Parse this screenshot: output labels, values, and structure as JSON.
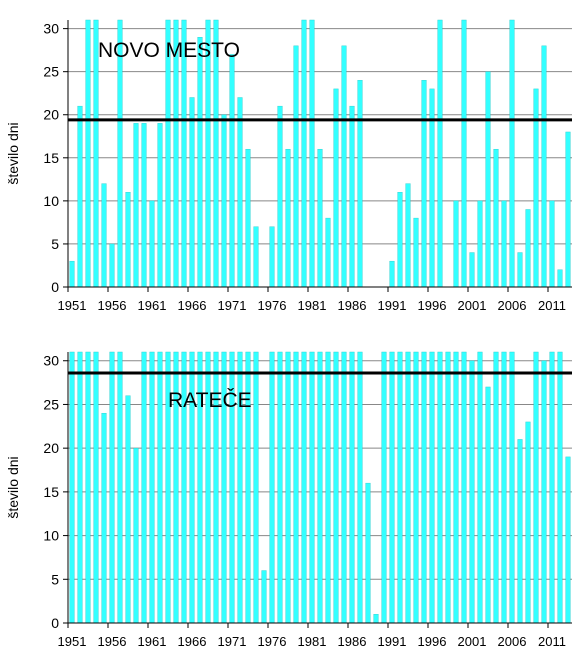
{
  "chart_data": [
    {
      "type": "bar",
      "annotation": "NOVO MESTO",
      "ylabel": "število dni",
      "xlabel": "",
      "ylim": [
        0,
        31
      ],
      "yticks": [
        0,
        5,
        10,
        15,
        20,
        25,
        30
      ],
      "xtick_labels": [
        "1951",
        "1956",
        "1961",
        "1966",
        "1971",
        "1976",
        "1981",
        "1986",
        "1991",
        "1996",
        "2001",
        "2006",
        "2011"
      ],
      "reference_line": 19.4,
      "categories": [
        1951,
        1952,
        1953,
        1954,
        1955,
        1956,
        1957,
        1958,
        1959,
        1960,
        1961,
        1962,
        1963,
        1964,
        1965,
        1966,
        1967,
        1968,
        1969,
        1970,
        1971,
        1972,
        1973,
        1974,
        1975,
        1976,
        1977,
        1978,
        1979,
        1980,
        1981,
        1982,
        1983,
        1984,
        1985,
        1986,
        1987,
        1988,
        1989,
        1990,
        1991,
        1992,
        1993,
        1994,
        1995,
        1996,
        1997,
        1998,
        1999,
        2000,
        2001,
        2002,
        2003,
        2004,
        2005,
        2006,
        2007,
        2008,
        2009,
        2010,
        2011,
        2012,
        2013
      ],
      "values": [
        3,
        21,
        31,
        31,
        12,
        5,
        31,
        11,
        19,
        19,
        10,
        19,
        31,
        31,
        31,
        22,
        29,
        31,
        31,
        20,
        27,
        22,
        16,
        7,
        0,
        7,
        21,
        16,
        28,
        31,
        31,
        16,
        8,
        23,
        28,
        21,
        24,
        0,
        0,
        0,
        3,
        11,
        12,
        8,
        24,
        23,
        31,
        0,
        10,
        31,
        4,
        10,
        25,
        16,
        10,
        31,
        4,
        9,
        23,
        28,
        10,
        2,
        18
      ],
      "bar_color": "#33FFFF",
      "grid": true
    },
    {
      "type": "bar",
      "annotation": "RATEČE",
      "ylabel": "število dni",
      "xlabel": "",
      "ylim": [
        0,
        31
      ],
      "yticks": [
        0,
        5,
        10,
        15,
        20,
        25,
        30
      ],
      "xtick_labels": [
        "1951",
        "1956",
        "1961",
        "1966",
        "1971",
        "1976",
        "1981",
        "1986",
        "1991",
        "1996",
        "2001",
        "2006",
        "2011"
      ],
      "reference_line": 28.6,
      "categories": [
        1951,
        1952,
        1953,
        1954,
        1955,
        1956,
        1957,
        1958,
        1959,
        1960,
        1961,
        1962,
        1963,
        1964,
        1965,
        1966,
        1967,
        1968,
        1969,
        1970,
        1971,
        1972,
        1973,
        1974,
        1975,
        1976,
        1977,
        1978,
        1979,
        1980,
        1981,
        1982,
        1983,
        1984,
        1985,
        1986,
        1987,
        1988,
        1989,
        1990,
        1991,
        1992,
        1993,
        1994,
        1995,
        1996,
        1997,
        1998,
        1999,
        2000,
        2001,
        2002,
        2003,
        2004,
        2005,
        2006,
        2007,
        2008,
        2009,
        2010,
        2011,
        2012,
        2013
      ],
      "values": [
        31,
        31,
        31,
        31,
        24,
        31,
        31,
        26,
        20,
        31,
        31,
        31,
        31,
        31,
        31,
        31,
        31,
        31,
        31,
        31,
        31,
        31,
        31,
        31,
        6,
        31,
        31,
        31,
        31,
        31,
        31,
        31,
        31,
        31,
        31,
        31,
        31,
        16,
        1,
        31,
        31,
        31,
        31,
        31,
        31,
        31,
        31,
        31,
        31,
        31,
        30,
        31,
        27,
        31,
        31,
        31,
        21,
        23,
        31,
        30,
        31,
        31,
        19
      ],
      "bar_color": "#33FFFF",
      "grid": true
    }
  ]
}
